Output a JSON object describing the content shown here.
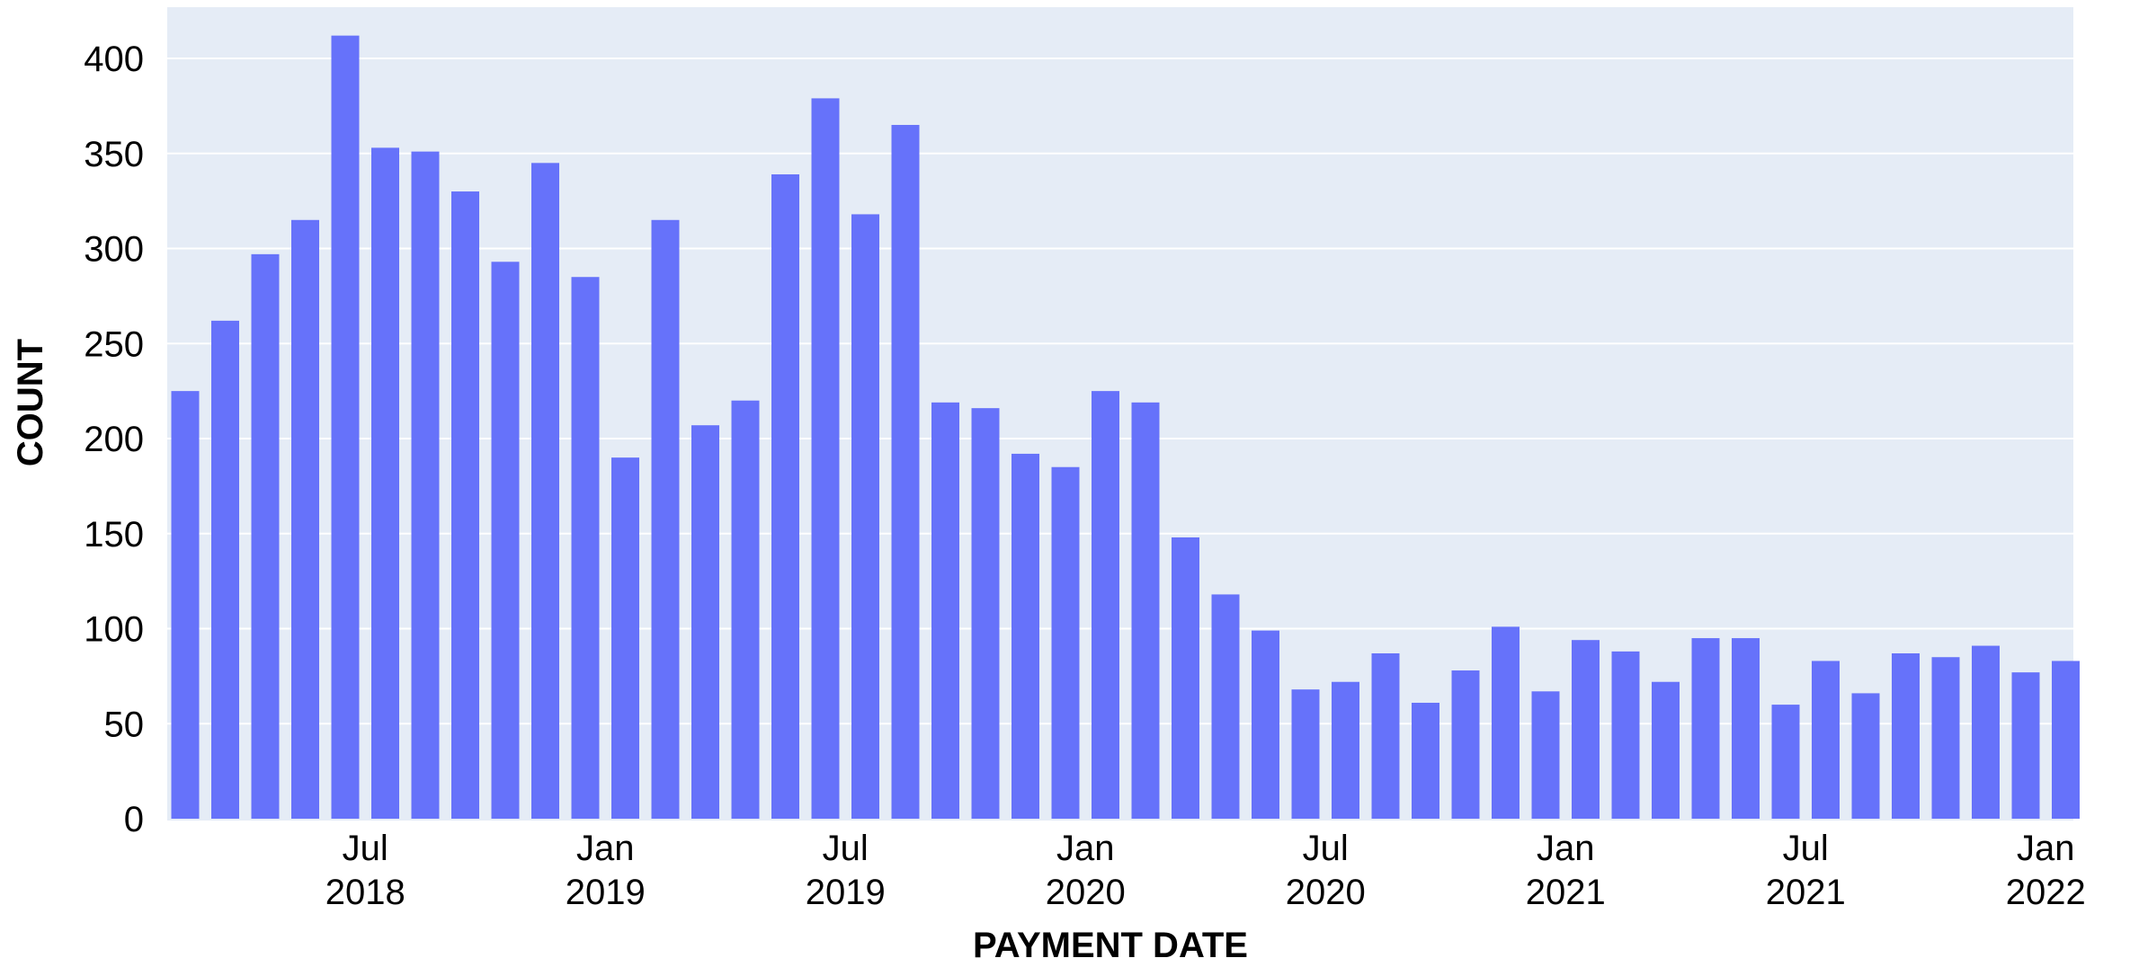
{
  "chart_data": {
    "type": "bar",
    "xlabel": "PAYMENT DATE",
    "ylabel": "COUNT",
    "ylim": [
      0,
      420
    ],
    "yticks": [
      0,
      50,
      100,
      150,
      200,
      250,
      300,
      350,
      400
    ],
    "grid": true,
    "legend": "none",
    "colors": {
      "bar": "#6672FA",
      "plot_bg": "#E5ECF6",
      "grid": "#ffffff"
    },
    "x": [
      "2018-02",
      "2018-03",
      "2018-04",
      "2018-05",
      "2018-06",
      "2018-07",
      "2018-08",
      "2018-09",
      "2018-10",
      "2018-11",
      "2018-12",
      "2019-01",
      "2019-02",
      "2019-03",
      "2019-04",
      "2019-05",
      "2019-06",
      "2019-07",
      "2019-08",
      "2019-09",
      "2019-10",
      "2019-11",
      "2019-12",
      "2020-01",
      "2020-02",
      "2020-03",
      "2020-04",
      "2020-05",
      "2020-06",
      "2020-07",
      "2020-08",
      "2020-09",
      "2020-10",
      "2020-11",
      "2020-12",
      "2021-01",
      "2021-02",
      "2021-03",
      "2021-04",
      "2021-05",
      "2021-06",
      "2021-07",
      "2021-08",
      "2021-09",
      "2021-10",
      "2021-11",
      "2021-12",
      "2022-01"
    ],
    "values": [
      225,
      262,
      297,
      315,
      412,
      353,
      351,
      330,
      293,
      345,
      285,
      190,
      315,
      207,
      220,
      339,
      379,
      318,
      365,
      219,
      216,
      192,
      185,
      225,
      219,
      148,
      118,
      99,
      68,
      72,
      87,
      61,
      78,
      101,
      67,
      94,
      88,
      72,
      95,
      95,
      60,
      83,
      66,
      87,
      85,
      91,
      77,
      83
    ],
    "xticks": [
      {
        "month": "2018-07",
        "line1": "Jul",
        "line2": "2018"
      },
      {
        "month": "2019-01",
        "line1": "Jan",
        "line2": "2019"
      },
      {
        "month": "2019-07",
        "line1": "Jul",
        "line2": "2019"
      },
      {
        "month": "2020-01",
        "line1": "Jan",
        "line2": "2020"
      },
      {
        "month": "2020-07",
        "line1": "Jul",
        "line2": "2020"
      },
      {
        "month": "2021-01",
        "line1": "Jan",
        "line2": "2021"
      },
      {
        "month": "2021-07",
        "line1": "Jul",
        "line2": "2021"
      },
      {
        "month": "2022-01",
        "line1": "Jan",
        "line2": "2022"
      }
    ]
  }
}
